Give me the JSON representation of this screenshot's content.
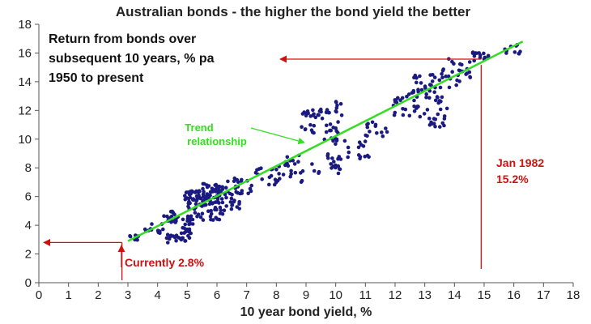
{
  "chart_data": {
    "type": "scatter",
    "title": "Australian bonds - the higher the bond yield the better",
    "subtitle_lines": [
      "Return from bonds over",
      "subsequent 10 years, % pa",
      "1950 to present"
    ],
    "xlabel": "10 year bond yield, %",
    "ylabel": "",
    "xlim": [
      0,
      18
    ],
    "ylim": [
      0,
      18
    ],
    "x_ticks": [
      "0",
      "1",
      "2",
      "3",
      "4",
      "5",
      "6",
      "7",
      "8",
      "9",
      "10",
      "11",
      "12",
      "13",
      "14",
      "15",
      "16",
      "17",
      "18"
    ],
    "y_ticks": [
      "0",
      "2",
      "4",
      "6",
      "8",
      "10",
      "12",
      "14",
      "16",
      "18"
    ],
    "grid": false,
    "point_color": "#1a1a80",
    "trend": {
      "label_lines": [
        "Trend",
        "relationship"
      ],
      "color": "#33dd22",
      "start": [
        3.0,
        2.9
      ],
      "end": [
        16.3,
        16.8
      ]
    },
    "annotations": {
      "current": {
        "text": "Currently 2.8%",
        "x": 2.8,
        "y": 2.8,
        "color": "#d01010"
      },
      "jan1982": {
        "text_lines": [
          "Jan 1982",
          "15.2%"
        ],
        "x": 15.2,
        "y": 15.4,
        "color": "#d01010"
      }
    },
    "clusters": [
      {
        "x": [
          3.0,
          3.4
        ],
        "y": [
          2.9,
          3.3
        ],
        "n": 10
      },
      {
        "x": [
          3.5,
          4.2
        ],
        "y": [
          3.3,
          4.2
        ],
        "n": 12
      },
      {
        "x": [
          4.2,
          4.8
        ],
        "y": [
          4.2,
          5.0
        ],
        "n": 20
      },
      {
        "x": [
          4.3,
          4.8
        ],
        "y": [
          2.6,
          3.4
        ],
        "n": 14
      },
      {
        "x": [
          4.8,
          5.2
        ],
        "y": [
          2.9,
          4.6
        ],
        "n": 28
      },
      {
        "x": [
          4.9,
          5.6
        ],
        "y": [
          5.4,
          6.4
        ],
        "n": 40
      },
      {
        "x": [
          5.5,
          6.2
        ],
        "y": [
          5.8,
          6.9
        ],
        "n": 45
      },
      {
        "x": [
          5.0,
          6.2
        ],
        "y": [
          4.3,
          5.5
        ],
        "n": 35
      },
      {
        "x": [
          5.6,
          6.8
        ],
        "y": [
          5.0,
          6.3
        ],
        "n": 35
      },
      {
        "x": [
          6.3,
          7.2
        ],
        "y": [
          6.2,
          7.3
        ],
        "n": 22
      },
      {
        "x": [
          7.2,
          8.2
        ],
        "y": [
          6.8,
          8.1
        ],
        "n": 18
      },
      {
        "x": [
          8.2,
          8.8
        ],
        "y": [
          8.0,
          9.2
        ],
        "n": 10
      },
      {
        "x": [
          8.1,
          8.9
        ],
        "y": [
          7.0,
          7.8
        ],
        "n": 10
      },
      {
        "x": [
          8.8,
          9.8
        ],
        "y": [
          11.4,
          12.1
        ],
        "n": 22
      },
      {
        "x": [
          8.8,
          9.3
        ],
        "y": [
          10.4,
          11.1
        ],
        "n": 8
      },
      {
        "x": [
          9.2,
          10.2
        ],
        "y": [
          7.6,
          9.0
        ],
        "n": 22
      },
      {
        "x": [
          9.6,
          10.4
        ],
        "y": [
          9.6,
          11.3
        ],
        "n": 18
      },
      {
        "x": [
          10.0,
          10.3
        ],
        "y": [
          11.6,
          12.7
        ],
        "n": 8
      },
      {
        "x": [
          10.4,
          11.2
        ],
        "y": [
          8.6,
          10.0
        ],
        "n": 14
      },
      {
        "x": [
          11.0,
          11.8
        ],
        "y": [
          10.2,
          11.3
        ],
        "n": 14
      },
      {
        "x": [
          11.8,
          12.8
        ],
        "y": [
          11.6,
          13.3
        ],
        "n": 24
      },
      {
        "x": [
          12.6,
          13.6
        ],
        "y": [
          13.2,
          14.6
        ],
        "n": 24
      },
      {
        "x": [
          12.8,
          13.7
        ],
        "y": [
          10.8,
          11.8
        ],
        "n": 16
      },
      {
        "x": [
          13.0,
          13.8
        ],
        "y": [
          12.0,
          13.4
        ],
        "n": 16
      },
      {
        "x": [
          13.6,
          14.6
        ],
        "y": [
          13.6,
          15.7
        ],
        "n": 26
      },
      {
        "x": [
          14.6,
          15.2
        ],
        "y": [
          15.4,
          16.1
        ],
        "n": 14
      },
      {
        "x": [
          15.7,
          16.4
        ],
        "y": [
          15.9,
          16.6
        ],
        "n": 10
      }
    ]
  }
}
